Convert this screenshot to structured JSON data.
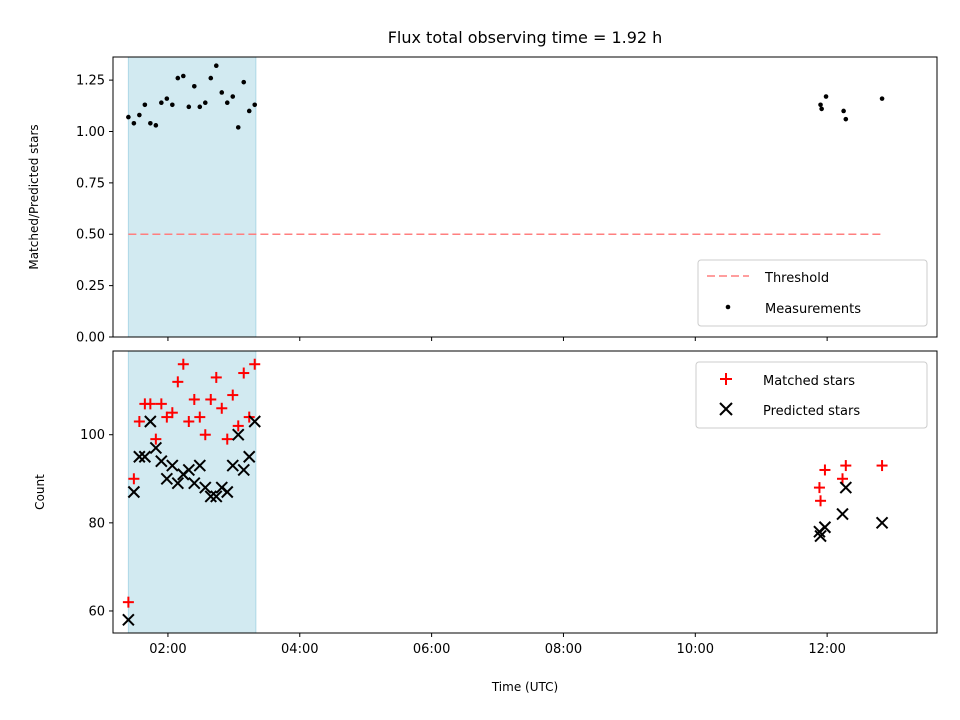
{
  "title": "Flux total observing time = 1.92 h",
  "colors": {
    "shade": "#add8e6",
    "threshold": "#ff7f7f",
    "measurements": "#000000",
    "matched": "#ff0000",
    "predicted": "#000000"
  },
  "chart_data": [
    {
      "type": "scatter",
      "ylabel": "Matched/Predicted stars",
      "ylim": [
        0.0,
        1.3625
      ],
      "xlim": [
        "01:10",
        "13:40"
      ],
      "yticks": [
        0.0,
        0.25,
        0.5,
        0.75,
        1.0,
        1.25
      ],
      "ytick_labels": [
        "0.00",
        "0.25",
        "0.50",
        "0.75",
        "1.00",
        "1.25"
      ],
      "shaded_span": [
        "01:24",
        "03:20"
      ],
      "legend_location": "lower-right",
      "legend": [
        "Threshold",
        "Measurements"
      ],
      "threshold": {
        "name": "Threshold",
        "x": [
          "01:24",
          "12:50"
        ],
        "y": 0.5
      },
      "series": [
        {
          "name": "Measurements",
          "x": [
            "01:24",
            "01:29",
            "01:34",
            "01:39",
            "01:44",
            "01:49",
            "01:54",
            "01:59",
            "02:04",
            "02:09",
            "02:14",
            "02:19",
            "02:24",
            "02:29",
            "02:34",
            "02:39",
            "02:44",
            "02:49",
            "02:54",
            "02:59",
            "03:04",
            "03:09",
            "03:14",
            "03:19",
            "11:54",
            "11:55",
            "11:59",
            "12:15",
            "12:17",
            "12:50"
          ],
          "y": [
            1.07,
            1.04,
            1.08,
            1.13,
            1.04,
            1.03,
            1.14,
            1.16,
            1.13,
            1.26,
            1.27,
            1.12,
            1.22,
            1.12,
            1.14,
            1.26,
            1.32,
            1.19,
            1.14,
            1.17,
            1.02,
            1.24,
            1.1,
            1.13,
            1.13,
            1.11,
            1.17,
            1.1,
            1.06,
            1.16
          ]
        }
      ]
    },
    {
      "type": "scatter",
      "xlabel": "Time (UTC)",
      "ylabel": "Count",
      "ylim": [
        55,
        119
      ],
      "xlim": [
        "01:10",
        "13:40"
      ],
      "yticks": [
        60,
        80,
        100
      ],
      "xticks": [
        "02:00",
        "04:00",
        "06:00",
        "08:00",
        "10:00",
        "12:00"
      ],
      "shaded_span": [
        "01:24",
        "03:20"
      ],
      "legend_location": "upper-right",
      "legend": [
        "Matched stars",
        "Predicted stars"
      ],
      "series": [
        {
          "name": "Matched stars",
          "marker": "+",
          "x": [
            "01:24",
            "01:29",
            "01:34",
            "01:39",
            "01:44",
            "01:49",
            "01:54",
            "01:59",
            "02:04",
            "02:09",
            "02:14",
            "02:19",
            "02:24",
            "02:29",
            "02:34",
            "02:39",
            "02:44",
            "02:49",
            "02:54",
            "02:59",
            "03:04",
            "03:09",
            "03:14",
            "03:19",
            "11:53",
            "11:54",
            "11:58",
            "12:14",
            "12:17",
            "12:50"
          ],
          "y": [
            62,
            90,
            103,
            107,
            107,
            99,
            107,
            104,
            105,
            112,
            116,
            103,
            108,
            104,
            100,
            108,
            113,
            106,
            99,
            109,
            102,
            114,
            104,
            116,
            88,
            85,
            92,
            90,
            93,
            93
          ]
        },
        {
          "name": "Predicted stars",
          "marker": "x",
          "x": [
            "01:24",
            "01:29",
            "01:34",
            "01:39",
            "01:44",
            "01:49",
            "01:54",
            "01:59",
            "02:04",
            "02:09",
            "02:14",
            "02:19",
            "02:24",
            "02:29",
            "02:34",
            "02:39",
            "02:44",
            "02:49",
            "02:54",
            "02:59",
            "03:04",
            "03:09",
            "03:14",
            "03:19",
            "11:53",
            "11:54",
            "11:58",
            "12:14",
            "12:17",
            "12:50"
          ],
          "y": [
            58,
            87,
            95,
            95,
            103,
            97,
            94,
            90,
            93,
            89,
            91,
            92,
            89,
            93,
            88,
            86,
            86,
            88,
            87,
            93,
            100,
            92,
            95,
            103,
            78,
            77,
            79,
            82,
            88,
            80
          ]
        }
      ]
    }
  ]
}
